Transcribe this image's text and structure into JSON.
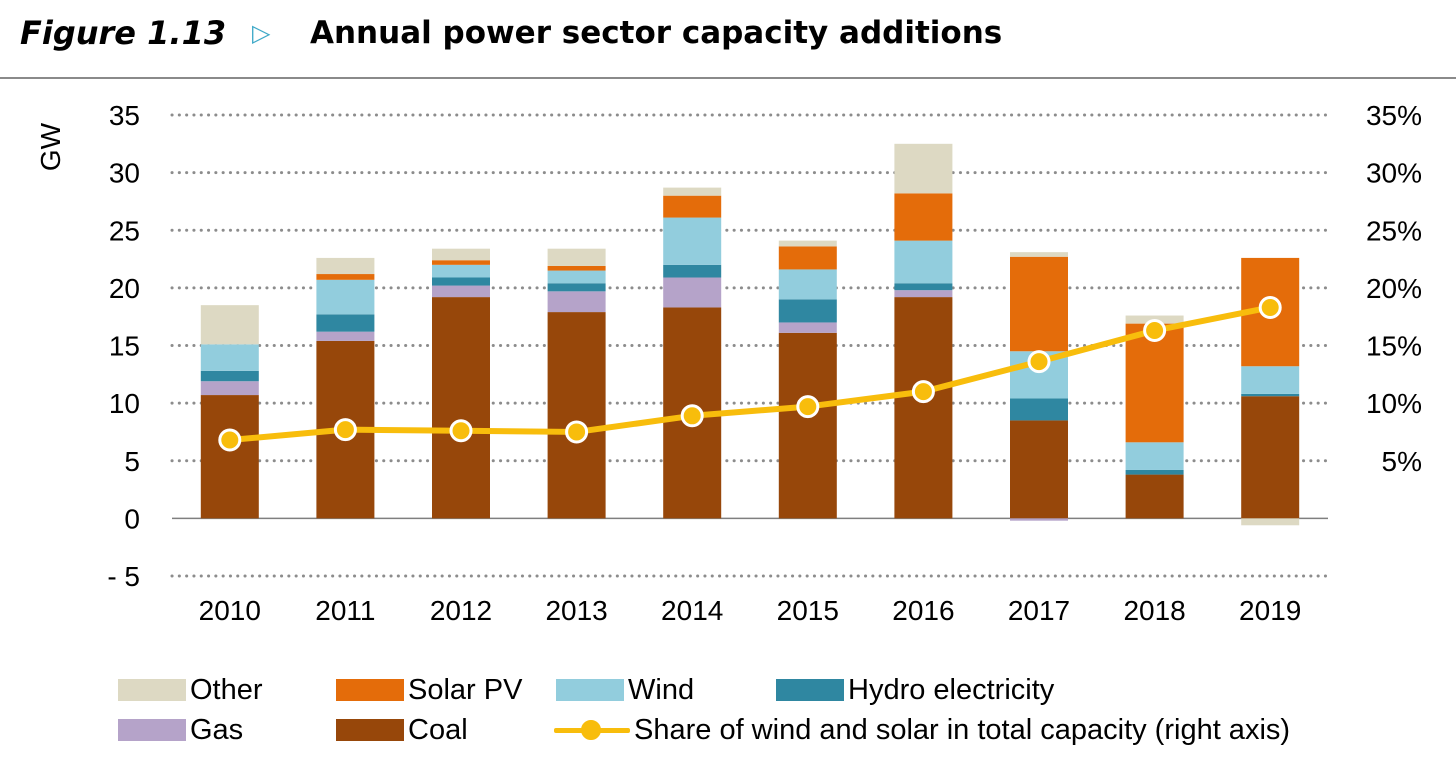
{
  "header": {
    "figure_label": "Figure 1.13",
    "arrow_glyph": "▷",
    "title": "Annual power sector capacity additions"
  },
  "chart_data": {
    "type": "bar",
    "stacked": true,
    "categories": [
      "2010",
      "2011",
      "2012",
      "2013",
      "2014",
      "2015",
      "2016",
      "2017",
      "2018",
      "2019"
    ],
    "ylabel": "GW",
    "ylim": [
      -5,
      35
    ],
    "yticks": [
      -5,
      0,
      5,
      10,
      15,
      20,
      25,
      30,
      35
    ],
    "ytick_labels": [
      "- 5",
      "0",
      "5",
      "10",
      "15",
      "20",
      "25",
      "30",
      "35"
    ],
    "y2lim": [
      -0.05,
      0.35
    ],
    "y2ticks": [
      0.05,
      0.1,
      0.15,
      0.2,
      0.25,
      0.3,
      0.35
    ],
    "y2tick_labels": [
      "5%",
      "10%",
      "15%",
      "20%",
      "25%",
      "30%",
      "35%"
    ],
    "grid": true,
    "legend_position": "bottom",
    "series": [
      {
        "name": "Coal",
        "color": "#97470a",
        "values": [
          10.7,
          15.4,
          19.2,
          17.9,
          18.3,
          16.1,
          19.2,
          8.5,
          3.8,
          10.6
        ]
      },
      {
        "name": "Gas",
        "color": "#b5a3c9",
        "values": [
          1.2,
          0.8,
          1.0,
          1.8,
          2.6,
          0.9,
          0.6,
          -0.2,
          0.0,
          0.0
        ]
      },
      {
        "name": "Hydro electricity",
        "color": "#2f87a1",
        "values": [
          0.9,
          1.5,
          0.7,
          0.7,
          1.1,
          2.0,
          0.6,
          1.9,
          0.4,
          0.2
        ]
      },
      {
        "name": "Wind",
        "color": "#92cddd",
        "values": [
          2.3,
          3.0,
          1.1,
          1.1,
          4.1,
          2.6,
          3.7,
          4.1,
          2.4,
          2.4
        ]
      },
      {
        "name": "Solar PV",
        "color": "#e46c0a",
        "values": [
          0.0,
          0.5,
          0.4,
          0.4,
          1.9,
          2.0,
          4.1,
          8.2,
          10.3,
          9.4
        ]
      },
      {
        "name": "Other",
        "color": "#ddd9c3",
        "values": [
          3.4,
          1.4,
          1.0,
          1.5,
          0.7,
          0.5,
          4.3,
          0.4,
          0.7,
          -0.6
        ]
      }
    ],
    "line": {
      "name": "Share of wind and solar in total capacity (right axis)",
      "color": "#f8bd0c",
      "values": [
        0.068,
        0.077,
        0.076,
        0.075,
        0.089,
        0.097,
        0.11,
        0.136,
        0.163,
        0.183
      ]
    }
  },
  "legend": {
    "other": "Other",
    "solar": "Solar PV",
    "wind": "Wind",
    "hydro": "Hydro electricity",
    "gas": "Gas",
    "coal": "Coal",
    "line": "Share of wind and solar in total capacity (right axis)"
  }
}
